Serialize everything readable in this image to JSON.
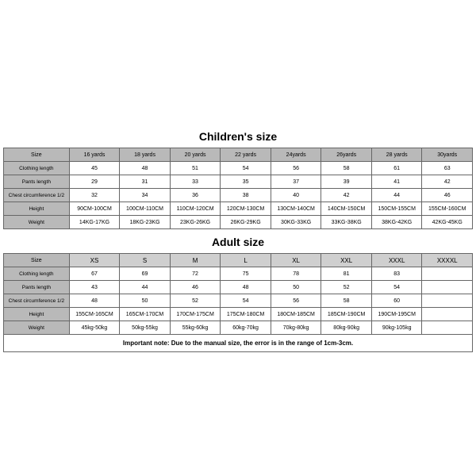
{
  "children": {
    "title": "Children's size",
    "headers": [
      "Size",
      "16 yards",
      "18 yards",
      "20 yards",
      "22 yards",
      "24yards",
      "26yards",
      "28 yards",
      "30yards"
    ],
    "row_labels": [
      "Clothing length",
      "Pants length",
      "Chest circumference 1/2",
      "Height",
      "Weight"
    ],
    "rows": [
      [
        "45",
        "48",
        "51",
        "54",
        "56",
        "58",
        "61",
        "63"
      ],
      [
        "29",
        "31",
        "33",
        "35",
        "37",
        "39",
        "41",
        "42"
      ],
      [
        "32",
        "34",
        "36",
        "38",
        "40",
        "42",
        "44",
        "46"
      ],
      [
        "90CM-100CM",
        "100CM-110CM",
        "110CM-120CM",
        "120CM-130CM",
        "130CM-140CM",
        "140CM-150CM",
        "150CM-155CM",
        "155CM-160CM"
      ],
      [
        "14KG-17KG",
        "18KG-23KG",
        "23KG-26KG",
        "26KG-29KG",
        "30KG-33KG",
        "33KG-38KG",
        "38KG-42KG",
        "42KG-45KG"
      ]
    ]
  },
  "adult": {
    "title": "Adult size",
    "headers": [
      "Size",
      "XS",
      "S",
      "M",
      "L",
      "XL",
      "XXL",
      "XXXL",
      "XXXXL"
    ],
    "row_labels": [
      "Clothing length",
      "Pants length",
      "Chest circumference 1/2",
      "Height",
      "Weight"
    ],
    "rows": [
      [
        "67",
        "69",
        "72",
        "75",
        "78",
        "81",
        "83",
        ""
      ],
      [
        "43",
        "44",
        "46",
        "48",
        "50",
        "52",
        "54",
        ""
      ],
      [
        "48",
        "50",
        "52",
        "54",
        "56",
        "58",
        "60",
        ""
      ],
      [
        "155CM-165CM",
        "165CM-170CM",
        "170CM-175CM",
        "175CM-180CM",
        "180CM-185CM",
        "185CM-190CM",
        "190CM-195CM",
        ""
      ],
      [
        "45kg-50kg",
        "50kg-55kg",
        "55kg-60kg",
        "60kg-70kg",
        "70kg-80kg",
        "80kg-90kg",
        "90kg-105kg",
        ""
      ]
    ]
  },
  "note": "Important note: Due to the manual size, the error is in the range of 1cm-3cm.",
  "colors": {
    "header_bg": "#b9b9b9",
    "adult_header_bg": "#cfcfcf",
    "border": "#666666",
    "text": "#000000",
    "bg": "#ffffff"
  }
}
